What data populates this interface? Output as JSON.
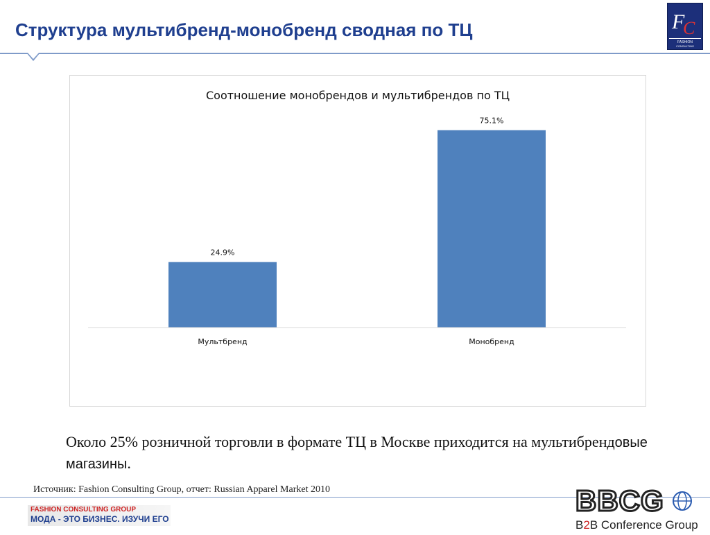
{
  "slide": {
    "title": "Структура мультибренд-монобренд сводная по ТЦ"
  },
  "chart_data": {
    "type": "bar",
    "title": "Соотношение монобрендов и мультибрендов по ТЦ",
    "categories": [
      "Мультбренд",
      "Монобренд"
    ],
    "values": [
      24.9,
      75.1
    ],
    "value_labels": [
      "24.9%",
      "75.1%"
    ],
    "xlabel": "",
    "ylabel": "",
    "ylim": [
      0,
      80
    ],
    "grid": false,
    "legend": "none",
    "bar_color": "#4f81bd"
  },
  "body": {
    "part1": "Около 25% розничной торговли в формате ТЦ в Москве приходится на мультибренд",
    "part2": "овые магазины",
    "part3": "."
  },
  "source": "Источник: Fashion Consulting Group, отчет: Russian Apparel Market 2010",
  "footer": {
    "brand_line1": "FASHION CONSULTING GROUP",
    "brand_line2": "МОДА - ЭТО БИЗНЕС. ИЗУЧИ ЕГО",
    "bbcg_name": "BBCG",
    "bbcg_b": "B",
    "bbcg_2": "2",
    "bbcg_rest": "B Conference Group"
  },
  "logo": {
    "name": "fashion-consulting-group-logo",
    "text": "FASHION CONSULTING GROUP"
  },
  "colors": {
    "title": "#1f3f8f",
    "accent_red": "#cc2222",
    "rule": "#7f9bc9"
  }
}
